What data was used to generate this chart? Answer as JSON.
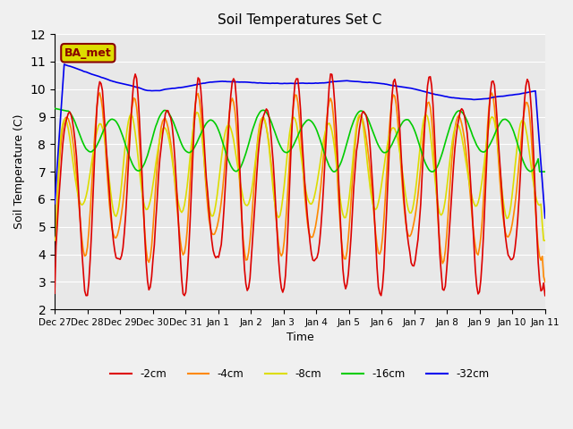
{
  "title": "Soil Temperatures Set C",
  "xlabel": "Time",
  "ylabel": "Soil Temperature (C)",
  "ylim": [
    2.0,
    12.0
  ],
  "yticks": [
    2.0,
    3.0,
    4.0,
    5.0,
    6.0,
    7.0,
    8.0,
    9.0,
    10.0,
    11.0,
    12.0
  ],
  "xtick_labels": [
    "Dec 27",
    "Dec 28",
    "Dec 29",
    "Dec 30",
    "Dec 31",
    "Jan 1",
    "Jan 2",
    "Jan 3",
    "Jan 4",
    "Jan 5",
    "Jan 6",
    "Jan 7",
    "Jan 8",
    "Jan 9",
    "Jan 10",
    "Jan 11"
  ],
  "colors": {
    "-2cm": "#dd0000",
    "-4cm": "#ff8800",
    "-8cm": "#dddd00",
    "-16cm": "#00cc00",
    "-32cm": "#0000ee"
  },
  "legend_label": "BA_met",
  "legend_box_color": "#dddd00",
  "legend_text_color": "#880000",
  "bg_color": "#e8e8e8",
  "plot_bg_color": "#e8e8e8"
}
